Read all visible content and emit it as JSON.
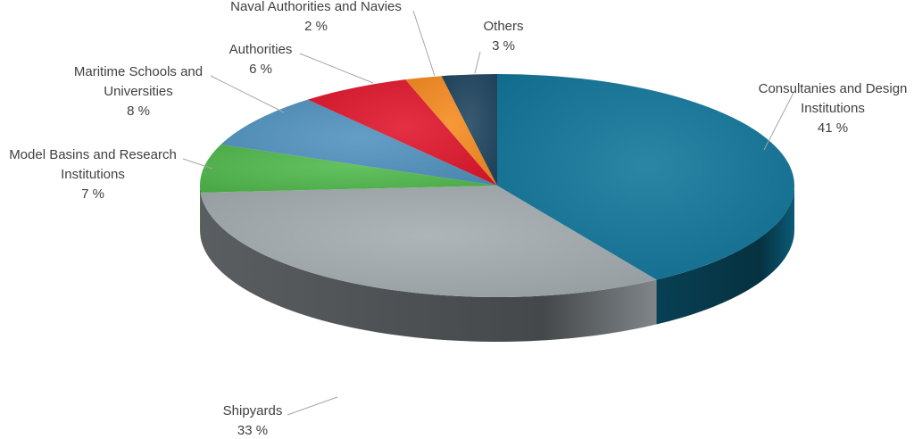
{
  "chart_data": {
    "type": "pie",
    "style": "3d",
    "title": "",
    "legend": "none",
    "slices": [
      {
        "label": "Consultanies and Design Institutions",
        "label_lines": [
          "Consultanies and Design",
          "Institutions"
        ],
        "value": 41,
        "value_text": "41 %",
        "color": "#0e7499"
      },
      {
        "label": "Shipyards",
        "label_lines": [
          "Shipyards"
        ],
        "value": 33,
        "value_text": "33 %",
        "color": "#a3abb0"
      },
      {
        "label": "Model Basins and Research Institutions",
        "label_lines": [
          "Model Basins and Research",
          "Institutions"
        ],
        "value": 7,
        "value_text": "7 %",
        "color": "#4fb84a"
      },
      {
        "label": "Maritime Schools and Universities",
        "label_lines": [
          "Maritime Schools and",
          "Universities"
        ],
        "value": 8,
        "value_text": "8 %",
        "color": "#4f91be"
      },
      {
        "label": "Authorities",
        "label_lines": [
          "Authorities"
        ],
        "value": 6,
        "value_text": "6 %",
        "color": "#e0142a"
      },
      {
        "label": "Naval Authorities and Navies",
        "label_lines": [
          "Naval Authorities and Navies"
        ],
        "value": 2,
        "value_text": "2 %",
        "color": "#f68a1e"
      },
      {
        "label": "Others",
        "label_lines": [
          "Others"
        ],
        "value": 3,
        "value_text": "3 %",
        "color": "#1e445e"
      }
    ]
  }
}
